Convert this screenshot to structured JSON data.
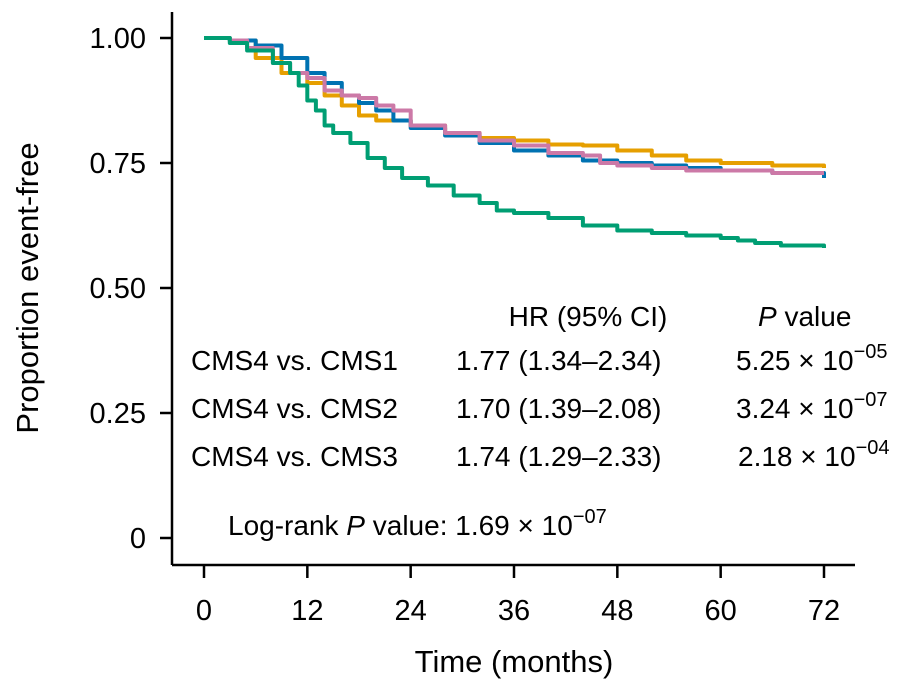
{
  "chart_data": {
    "type": "line",
    "xlabel": "Time (months)",
    "ylabel": "Proportion event-free",
    "xlim": [
      0,
      72
    ],
    "ylim": [
      0,
      1.0
    ],
    "x_ticks": [
      "0",
      "12",
      "24",
      "36",
      "48",
      "60",
      "72"
    ],
    "y_ticks": [
      "0",
      "0.25",
      "0.50",
      "0.75",
      "1.00"
    ],
    "grid": false,
    "legend": "none",
    "series": [
      {
        "color": "#E69F00",
        "points": [
          [
            0,
            1.0
          ],
          [
            3,
            0.995
          ],
          [
            6,
            0.96
          ],
          [
            9,
            0.93
          ],
          [
            12,
            0.91
          ],
          [
            14,
            0.885
          ],
          [
            16,
            0.865
          ],
          [
            18,
            0.845
          ],
          [
            20,
            0.835
          ],
          [
            24,
            0.825
          ],
          [
            28,
            0.81
          ],
          [
            32,
            0.8
          ],
          [
            36,
            0.795
          ],
          [
            40,
            0.787
          ],
          [
            44,
            0.785
          ],
          [
            48,
            0.775
          ],
          [
            52,
            0.765
          ],
          [
            56,
            0.755
          ],
          [
            60,
            0.75
          ],
          [
            66,
            0.745
          ],
          [
            72,
            0.74
          ]
        ]
      },
      {
        "color": "#0072B2",
        "points": [
          [
            0,
            1.0
          ],
          [
            3,
            0.995
          ],
          [
            6,
            0.985
          ],
          [
            9,
            0.96
          ],
          [
            12,
            0.93
          ],
          [
            14,
            0.91
          ],
          [
            16,
            0.885
          ],
          [
            18,
            0.87
          ],
          [
            20,
            0.855
          ],
          [
            22,
            0.835
          ],
          [
            24,
            0.82
          ],
          [
            28,
            0.805
          ],
          [
            32,
            0.79
          ],
          [
            36,
            0.775
          ],
          [
            40,
            0.765
          ],
          [
            44,
            0.755
          ],
          [
            48,
            0.75
          ],
          [
            52,
            0.745
          ],
          [
            56,
            0.74
          ],
          [
            60,
            0.735
          ],
          [
            66,
            0.73
          ],
          [
            72,
            0.72
          ]
        ]
      },
      {
        "color": "#CC79A7",
        "points": [
          [
            0,
            1.0
          ],
          [
            3,
            0.995
          ],
          [
            5,
            0.98
          ],
          [
            8,
            0.95
          ],
          [
            10,
            0.93
          ],
          [
            12,
            0.92
          ],
          [
            14,
            0.895
          ],
          [
            16,
            0.885
          ],
          [
            18,
            0.88
          ],
          [
            20,
            0.865
          ],
          [
            22,
            0.855
          ],
          [
            24,
            0.825
          ],
          [
            28,
            0.81
          ],
          [
            32,
            0.795
          ],
          [
            36,
            0.785
          ],
          [
            40,
            0.77
          ],
          [
            44,
            0.765
          ],
          [
            46,
            0.75
          ],
          [
            48,
            0.745
          ],
          [
            52,
            0.74
          ],
          [
            56,
            0.735
          ],
          [
            60,
            0.735
          ],
          [
            66,
            0.73
          ],
          [
            72,
            0.73
          ]
        ]
      },
      {
        "color": "#009E73",
        "points": [
          [
            0,
            1.0
          ],
          [
            3,
            0.99
          ],
          [
            5,
            0.975
          ],
          [
            8,
            0.95
          ],
          [
            10,
            0.93
          ],
          [
            11,
            0.905
          ],
          [
            12,
            0.875
          ],
          [
            13,
            0.855
          ],
          [
            14,
            0.825
          ],
          [
            15,
            0.81
          ],
          [
            17,
            0.79
          ],
          [
            19,
            0.76
          ],
          [
            21,
            0.74
          ],
          [
            23,
            0.72
          ],
          [
            26,
            0.705
          ],
          [
            29,
            0.685
          ],
          [
            32,
            0.67
          ],
          [
            34,
            0.655
          ],
          [
            36,
            0.65
          ],
          [
            40,
            0.64
          ],
          [
            44,
            0.625
          ],
          [
            48,
            0.615
          ],
          [
            52,
            0.61
          ],
          [
            56,
            0.605
          ],
          [
            60,
            0.6
          ],
          [
            62,
            0.595
          ],
          [
            64,
            0.59
          ],
          [
            67,
            0.585
          ],
          [
            72,
            0.58
          ]
        ]
      }
    ],
    "annotations": {
      "hr_header": "HR (95% CI)",
      "p_header_italic": "P",
      "p_header_rest": " value",
      "rows": [
        {
          "comparison": "CMS4 vs. CMS1",
          "hr": "1.77 (1.34–2.34)",
          "p_base": "5.25 × 10",
          "p_exp": "−05"
        },
        {
          "comparison": "CMS4 vs. CMS2",
          "hr": "1.70 (1.39–2.08)",
          "p_base": "3.24 × 10",
          "p_exp": "−07"
        },
        {
          "comparison": "CMS4 vs. CMS3",
          "hr": "1.74 (1.29–2.33)",
          "p_base": "2.18 × 10",
          "p_exp": "−04"
        }
      ],
      "logrank_prefix": "Log-rank ",
      "logrank_italic": "P",
      "logrank_mid": " value: 1.69 × 10",
      "logrank_exp": "−07"
    }
  }
}
